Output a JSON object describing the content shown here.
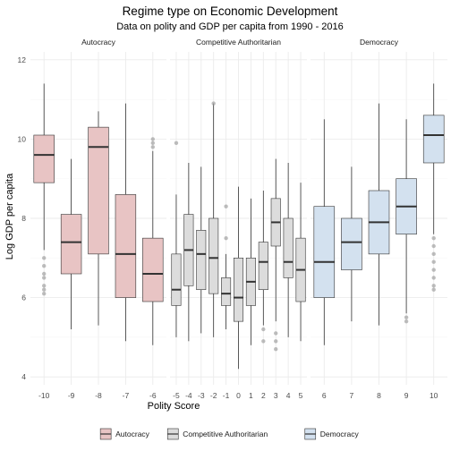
{
  "chart_data": {
    "type": "boxplot",
    "title": "Regime type on Economic Development",
    "subtitle": "Data on polity and GDP per capita from 1990 - 2016",
    "xlabel": "Polity Score",
    "ylabel": "Log GDP per capita",
    "ylim": [
      3.8,
      12.2
    ],
    "yticks": [
      4,
      6,
      8,
      10,
      12
    ],
    "grid": true,
    "legend_position": "bottom",
    "colors": {
      "Autocracy": "#e8c4c4",
      "Competitive Authoritarian": "#dcdcdc",
      "Democracy": "#d3e1ef",
      "box_stroke": "#333333",
      "outlier": "#9a9a9a"
    },
    "legend": [
      {
        "label": "Autocracy",
        "group": "Autocracy"
      },
      {
        "label": "Competitive Authoritarian",
        "group": "Competitive Authoritarian"
      },
      {
        "label": "Democracy",
        "group": "Democracy"
      }
    ],
    "facets": [
      {
        "name": "Autocracy",
        "boxes": [
          {
            "x": "-10",
            "min": 7.2,
            "q1": 8.9,
            "median": 9.6,
            "q3": 10.1,
            "max": 11.4,
            "outliers": [
              7.0,
              6.8,
              6.6,
              6.5,
              6.3,
              6.2,
              6.1
            ]
          },
          {
            "x": "-9",
            "min": 5.2,
            "q1": 6.6,
            "median": 7.4,
            "q3": 8.1,
            "max": 9.5,
            "outliers": []
          },
          {
            "x": "-8",
            "min": 5.3,
            "q1": 7.1,
            "median": 9.8,
            "q3": 10.3,
            "max": 10.7,
            "outliers": []
          },
          {
            "x": "-7",
            "min": 4.9,
            "q1": 6.0,
            "median": 7.1,
            "q3": 8.6,
            "max": 10.9,
            "outliers": []
          },
          {
            "x": "-6",
            "min": 4.8,
            "q1": 5.9,
            "median": 6.6,
            "q3": 7.5,
            "max": 9.7,
            "outliers": [
              10.0,
              9.9,
              9.8
            ]
          }
        ]
      },
      {
        "name": "Competitive Authoritarian",
        "boxes": [
          {
            "x": "-5",
            "min": 5.0,
            "q1": 5.8,
            "median": 6.2,
            "q3": 7.1,
            "max": 8.6,
            "outliers": [
              9.9
            ]
          },
          {
            "x": "-4",
            "min": 4.9,
            "q1": 6.3,
            "median": 7.2,
            "q3": 8.1,
            "max": 9.4,
            "outliers": []
          },
          {
            "x": "-3",
            "min": 5.1,
            "q1": 6.2,
            "median": 7.1,
            "q3": 7.7,
            "max": 9.3,
            "outliers": []
          },
          {
            "x": "-2",
            "min": 5.0,
            "q1": 6.1,
            "median": 7.0,
            "q3": 8.0,
            "max": 10.9,
            "outliers": [
              10.9
            ]
          },
          {
            "x": "-1",
            "min": 5.2,
            "q1": 5.8,
            "median": 6.1,
            "q3": 6.5,
            "max": 7.1,
            "outliers": [
              8.3,
              7.5
            ]
          },
          {
            "x": "0",
            "min": 4.2,
            "q1": 5.4,
            "median": 6.0,
            "q3": 7.0,
            "max": 8.8,
            "outliers": []
          },
          {
            "x": "1",
            "min": 4.8,
            "q1": 5.8,
            "median": 6.4,
            "q3": 7.0,
            "max": 8.5,
            "outliers": []
          },
          {
            "x": "2",
            "min": 5.3,
            "q1": 6.2,
            "median": 6.9,
            "q3": 7.4,
            "max": 8.7,
            "outliers": [
              5.2,
              4.9
            ]
          },
          {
            "x": "3",
            "min": 5.4,
            "q1": 7.3,
            "median": 7.9,
            "q3": 8.5,
            "max": 9.5,
            "outliers": [
              5.1,
              4.9,
              4.7
            ]
          },
          {
            "x": "4",
            "min": 5.0,
            "q1": 6.5,
            "median": 6.9,
            "q3": 8.0,
            "max": 9.4,
            "outliers": []
          },
          {
            "x": "5",
            "min": 4.9,
            "q1": 5.9,
            "median": 6.7,
            "q3": 7.5,
            "max": 8.9,
            "outliers": []
          }
        ]
      },
      {
        "name": "Democracy",
        "boxes": [
          {
            "x": "6",
            "min": 4.8,
            "q1": 6.0,
            "median": 6.9,
            "q3": 8.3,
            "max": 10.5,
            "outliers": []
          },
          {
            "x": "7",
            "min": 5.4,
            "q1": 6.7,
            "median": 7.4,
            "q3": 8.0,
            "max": 9.3,
            "outliers": []
          },
          {
            "x": "8",
            "min": 5.3,
            "q1": 7.1,
            "median": 7.9,
            "q3": 8.7,
            "max": 10.9,
            "outliers": []
          },
          {
            "x": "9",
            "min": 5.6,
            "q1": 7.6,
            "median": 8.3,
            "q3": 9.0,
            "max": 10.5,
            "outliers": [
              5.5,
              5.4
            ]
          },
          {
            "x": "10",
            "min": 7.6,
            "q1": 9.4,
            "median": 10.1,
            "q3": 10.6,
            "max": 11.4,
            "outliers": [
              7.5,
              7.3,
              7.1,
              6.9,
              6.7,
              6.5,
              6.3,
              6.2
            ]
          }
        ]
      }
    ]
  }
}
